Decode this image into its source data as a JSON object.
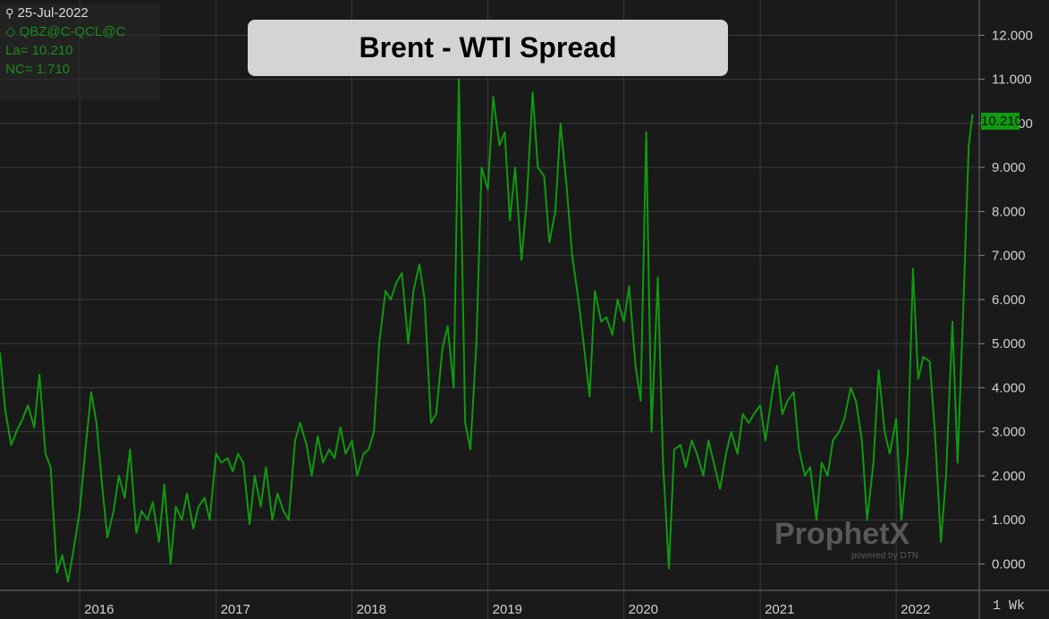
{
  "info": {
    "date": "25-Jul-2022",
    "symbol": "QBZ@C-QCL@C",
    "last": "La= 10.210",
    "net_change": "NC= 1.710"
  },
  "title": "Brent - WTI Spread",
  "last_badge": "10.210",
  "period_label": "1 Wk",
  "watermark": {
    "brand": "ProphetX",
    "sub": "powered by DTN"
  },
  "colors": {
    "series": "#0f9a0f",
    "background": "#1a1a1a",
    "grid": "#3a3a3a",
    "badge": "#0f9a0f"
  },
  "chart_data": {
    "type": "line",
    "title": "Brent - WTI Spread",
    "xlabel": "",
    "ylabel": "",
    "xlim": [
      "2015-06-01",
      "2022-08-12"
    ],
    "ylim": [
      -0.6,
      12.8
    ],
    "y_ticks": [
      0,
      1,
      2,
      3,
      4,
      5,
      6,
      7,
      8,
      9,
      10,
      11,
      12
    ],
    "y_tick_labels": [
      "0.000",
      "1.000",
      "2.000",
      "3.000",
      "4.000",
      "5.000",
      "6.000",
      "7.000",
      "8.000",
      "9.000",
      "10.000",
      "11.000",
      "12.000"
    ],
    "x_ticks": [
      "2016-01-01",
      "2017-01-01",
      "2018-01-01",
      "2019-01-01",
      "2020-01-01",
      "2021-01-01",
      "2022-01-01"
    ],
    "x_tick_labels": [
      "2016",
      "2017",
      "2018",
      "2019",
      "2020",
      "2021",
      "2022"
    ],
    "grid": true,
    "series": [
      {
        "name": "",
        "x": [
          "2015-06-01",
          "2015-06-15",
          "2015-07-01",
          "2015-07-15",
          "2015-08-01",
          "2015-08-15",
          "2015-09-01",
          "2015-09-15",
          "2015-10-01",
          "2015-10-15",
          "2015-11-01",
          "2015-11-15",
          "2015-12-01",
          "2015-12-15",
          "2016-01-01",
          "2016-01-15",
          "2016-02-01",
          "2016-02-15",
          "2016-03-01",
          "2016-03-15",
          "2016-04-01",
          "2016-04-15",
          "2016-05-01",
          "2016-05-15",
          "2016-06-01",
          "2016-06-15",
          "2016-07-01",
          "2016-07-15",
          "2016-08-01",
          "2016-08-15",
          "2016-09-01",
          "2016-09-15",
          "2016-10-01",
          "2016-10-15",
          "2016-11-01",
          "2016-11-15",
          "2016-12-01",
          "2016-12-15",
          "2017-01-01",
          "2017-01-15",
          "2017-02-01",
          "2017-02-15",
          "2017-03-01",
          "2017-03-15",
          "2017-04-01",
          "2017-04-15",
          "2017-05-01",
          "2017-05-15",
          "2017-06-01",
          "2017-06-15",
          "2017-07-01",
          "2017-07-15",
          "2017-08-01",
          "2017-08-15",
          "2017-09-01",
          "2017-09-15",
          "2017-10-01",
          "2017-10-15",
          "2017-11-01",
          "2017-11-15",
          "2017-12-01",
          "2017-12-15",
          "2018-01-01",
          "2018-01-15",
          "2018-02-01",
          "2018-02-15",
          "2018-03-01",
          "2018-03-15",
          "2018-04-01",
          "2018-04-15",
          "2018-05-01",
          "2018-05-15",
          "2018-06-01",
          "2018-06-15",
          "2018-07-01",
          "2018-07-15",
          "2018-08-01",
          "2018-08-15",
          "2018-09-01",
          "2018-09-15",
          "2018-10-01",
          "2018-10-15",
          "2018-11-01",
          "2018-11-15",
          "2018-12-01",
          "2018-12-15",
          "2019-01-01",
          "2019-01-15",
          "2019-02-01",
          "2019-02-15",
          "2019-03-01",
          "2019-03-15",
          "2019-04-01",
          "2019-04-15",
          "2019-05-01",
          "2019-05-15",
          "2019-06-01",
          "2019-06-15",
          "2019-07-01",
          "2019-07-15",
          "2019-08-01",
          "2019-08-15",
          "2019-09-01",
          "2019-09-15",
          "2019-10-01",
          "2019-10-15",
          "2019-11-01",
          "2019-11-15",
          "2019-12-01",
          "2019-12-15",
          "2020-01-01",
          "2020-01-15",
          "2020-02-01",
          "2020-02-15",
          "2020-03-01",
          "2020-03-15",
          "2020-04-01",
          "2020-04-15",
          "2020-05-01",
          "2020-05-15",
          "2020-06-01",
          "2020-06-15",
          "2020-07-01",
          "2020-07-15",
          "2020-08-01",
          "2020-08-15",
          "2020-09-01",
          "2020-09-15",
          "2020-10-01",
          "2020-10-15",
          "2020-11-01",
          "2020-11-15",
          "2020-12-01",
          "2020-12-15",
          "2021-01-01",
          "2021-01-15",
          "2021-02-01",
          "2021-02-15",
          "2021-03-01",
          "2021-03-15",
          "2021-04-01",
          "2021-04-15",
          "2021-05-01",
          "2021-05-15",
          "2021-06-01",
          "2021-06-15",
          "2021-07-01",
          "2021-07-15",
          "2021-08-01",
          "2021-08-15",
          "2021-09-01",
          "2021-09-15",
          "2021-10-01",
          "2021-10-15",
          "2021-11-01",
          "2021-11-15",
          "2021-12-01",
          "2021-12-15",
          "2022-01-01",
          "2022-01-15",
          "2022-02-01",
          "2022-02-15",
          "2022-03-01",
          "2022-03-15",
          "2022-04-01",
          "2022-04-15",
          "2022-05-01",
          "2022-05-15",
          "2022-06-01",
          "2022-06-15",
          "2022-07-01",
          "2022-07-15",
          "2022-07-25"
        ],
        "values": [
          4.8,
          3.5,
          2.7,
          3.0,
          3.3,
          3.6,
          3.1,
          4.3,
          2.5,
          2.2,
          -0.2,
          0.2,
          -0.4,
          0.3,
          1.2,
          2.5,
          3.9,
          3.2,
          1.8,
          0.6,
          1.2,
          2.0,
          1.5,
          2.6,
          0.7,
          1.2,
          1.0,
          1.4,
          0.5,
          1.8,
          0.0,
          1.3,
          1.0,
          1.6,
          0.8,
          1.3,
          1.5,
          1.0,
          2.5,
          2.3,
          2.4,
          2.1,
          2.5,
          2.3,
          0.9,
          2.0,
          1.3,
          2.2,
          1.0,
          1.6,
          1.2,
          1.0,
          2.8,
          3.2,
          2.7,
          2.0,
          2.9,
          2.3,
          2.6,
          2.4,
          3.1,
          2.5,
          2.8,
          2.0,
          2.5,
          2.6,
          3.0,
          5.0,
          6.2,
          6.0,
          6.4,
          6.6,
          5.0,
          6.2,
          6.8,
          6.0,
          3.2,
          3.4,
          4.9,
          5.4,
          4.0,
          11.0,
          3.2,
          2.6,
          5.0,
          9.0,
          8.5,
          10.6,
          9.5,
          9.8,
          7.8,
          9.0,
          6.9,
          8.2,
          10.7,
          9.0,
          8.8,
          7.3,
          8.0,
          10.0,
          8.5,
          7.0,
          6.0,
          5.0,
          3.8,
          6.2,
          5.5,
          5.6,
          5.2,
          6.0,
          5.5,
          6.3,
          4.5,
          3.7,
          9.8,
          3.0,
          6.5,
          2.3,
          -0.1,
          2.6,
          2.7,
          2.2,
          2.8,
          2.5,
          2.0,
          2.8,
          2.2,
          1.7,
          2.5,
          3.0,
          2.5,
          3.4,
          3.2,
          3.4,
          3.6,
          2.8,
          3.8,
          4.5,
          3.4,
          3.7,
          3.9,
          2.6,
          2.0,
          2.2,
          1.0,
          2.3,
          2.0,
          2.8,
          3.0,
          3.3,
          4.0,
          3.7,
          2.8,
          1.0,
          2.3,
          4.4,
          3.0,
          2.5,
          3.3,
          1.0,
          2.5,
          6.7,
          4.2,
          4.7,
          4.6,
          3.0,
          0.5,
          2.0,
          5.5,
          2.3,
          6.0,
          9.5,
          10.21
        ]
      }
    ]
  }
}
